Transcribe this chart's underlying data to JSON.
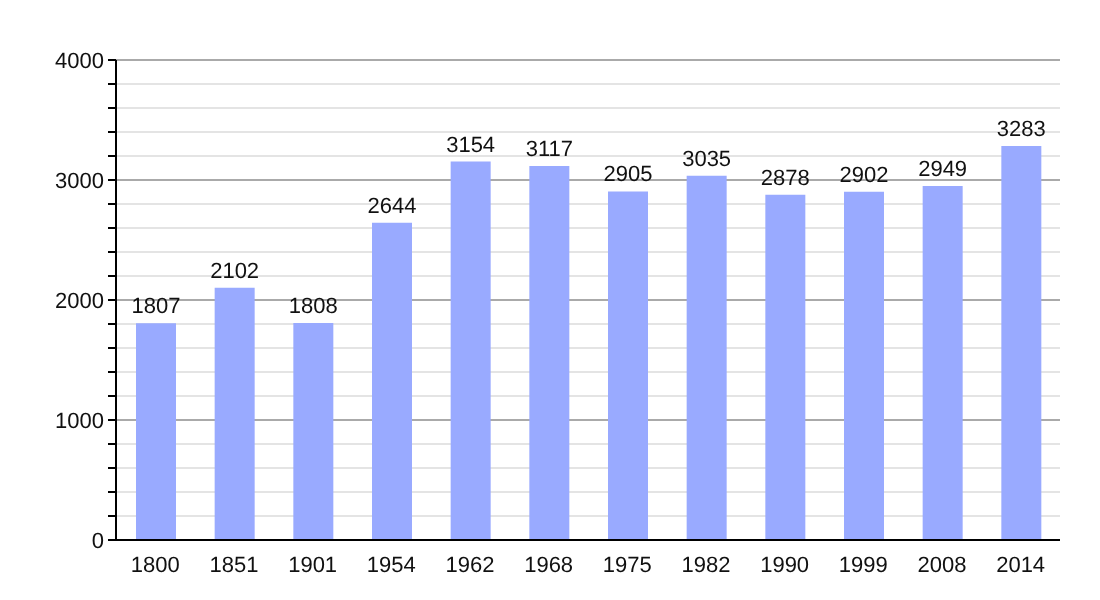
{
  "chart_data": {
    "type": "bar",
    "categories": [
      "1800",
      "1851",
      "1901",
      "1954",
      "1962",
      "1968",
      "1975",
      "1982",
      "1990",
      "1999",
      "2008",
      "2014"
    ],
    "values": [
      1807,
      2102,
      1808,
      2644,
      3154,
      3117,
      2905,
      3035,
      2878,
      2902,
      2949,
      3283
    ],
    "color": "#99aaff",
    "ylim": [
      0,
      4000
    ],
    "yticks": [
      0,
      {
        "value": 200,
        "label": null
      },
      {
        "value": 400,
        "label": null
      },
      {
        "value": 600,
        "label": null
      },
      {
        "value": 800,
        "label": null
      },
      1000,
      {
        "value": 1200,
        "label": null
      },
      {
        "value": 1400,
        "label": null
      },
      {
        "value": 1600,
        "label": null
      },
      {
        "value": 1800,
        "label": null
      },
      2000,
      {
        "value": 2200,
        "label": null
      },
      {
        "value": 2400,
        "label": null
      },
      {
        "value": 2600,
        "label": null
      },
      {
        "value": 2800,
        "label": null
      },
      3000,
      {
        "value": 3200,
        "label": null
      },
      {
        "value": 3400,
        "label": null
      },
      {
        "value": 3600,
        "label": null
      },
      {
        "value": 3800,
        "label": null
      },
      4000
    ],
    "grid": "y",
    "data_labels": true
  }
}
